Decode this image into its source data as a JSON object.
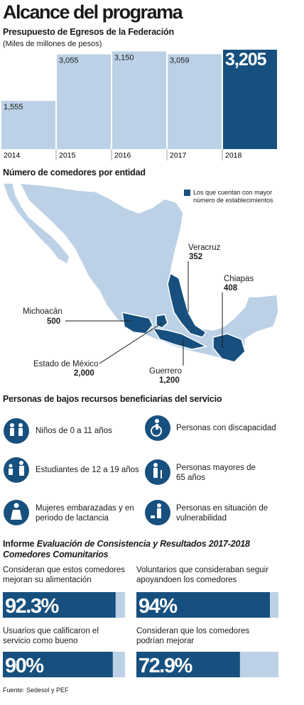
{
  "title": "Alcance del programa",
  "chart_data": [
    {
      "type": "bar",
      "title": "Presupuesto de Egresos de la Federación",
      "subtitle": "(Miles de millones de pesos)",
      "categories": [
        "2014",
        "2015",
        "2016",
        "2017",
        "2018"
      ],
      "values": [
        1555,
        3055,
        3150,
        3059,
        3205
      ],
      "value_labels": [
        "1,555",
        "3,055",
        "3,150",
        "3,059",
        "3,205"
      ],
      "colors": [
        "#bcd1e6",
        "#bcd1e6",
        "#bcd1e6",
        "#bcd1e6",
        "#17507e"
      ]
    },
    {
      "type": "progress",
      "categories": [
        "Consideran que estos comedores mejoran su alimentación",
        "Voluntarios que consideraban seguir apoyandoen los comedores",
        "Usuarios que calificaron el servicio como bueno",
        "Consideran que los comedores podrían mejorar"
      ],
      "values": [
        92.3,
        94,
        90,
        72.9
      ],
      "value_labels": [
        "92.3%",
        "94%",
        "90%",
        "72.9%"
      ],
      "xlim": [
        0,
        100
      ],
      "color": "#17507e",
      "track_color": "#bcd1e6"
    }
  ],
  "map": {
    "title": "Número de comedores por entidad",
    "legend": "Los que cuentan con mayor número de establecimientos",
    "states": [
      {
        "name": "Michoacán",
        "value": "500"
      },
      {
        "name": "Estado de México",
        "value": "2,000"
      },
      {
        "name": "Guerrero",
        "value": "1,200"
      },
      {
        "name": "Veracruz",
        "value": "352"
      },
      {
        "name": "Chiapas",
        "value": "408"
      }
    ]
  },
  "beneficiaries": {
    "title": "Personas de bajos recursos beneficiarias del servicio",
    "items": [
      "Niños de 0 a 11 años",
      "Estudiantes de 12 a 19 años",
      "Mujeres embarazadas y en periodo de lactancia",
      "Personas con discapacidad",
      "Personas mayores de 65 años",
      "Personas en situación de vulnerabilidad"
    ]
  },
  "report": {
    "prefix": "Informe ",
    "title": "Evaluación de Consistencia y Resultados 2017-2018 Comedores Comunitarios"
  },
  "source": "Fuente: Sedesol y PEF"
}
